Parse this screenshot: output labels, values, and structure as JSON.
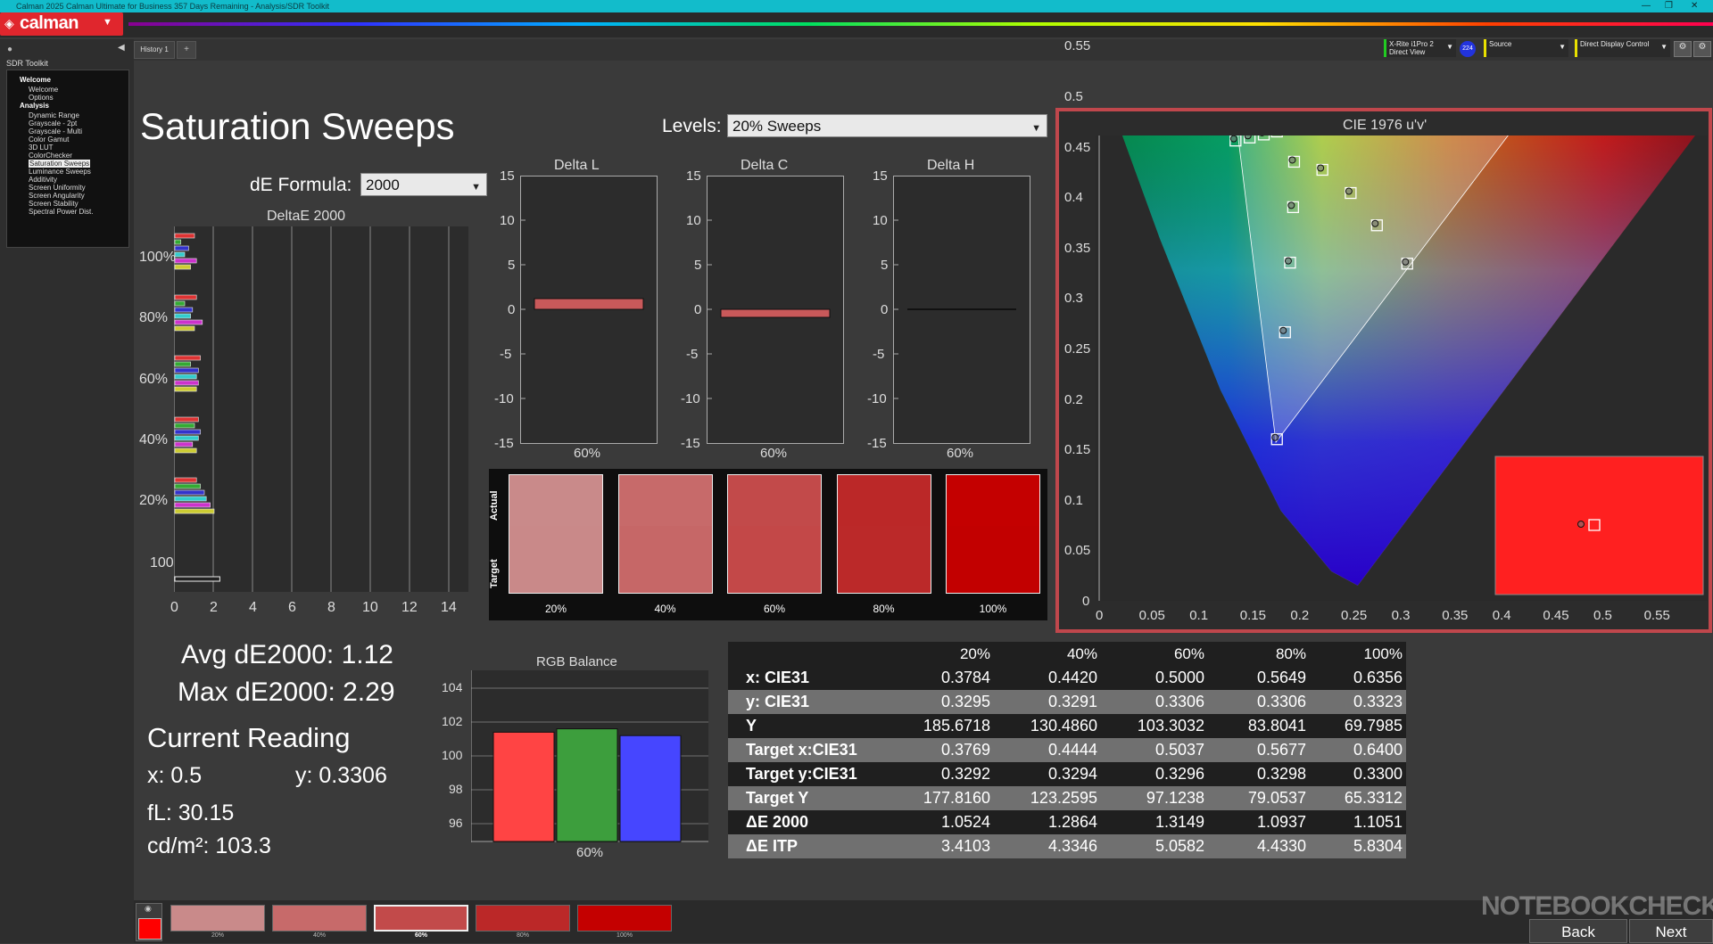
{
  "titlebar": {
    "text": "Calman 2025 Calman Ultimate for Business 357 Days Remaining - Analysis/SDR Toolkit"
  },
  "app": {
    "logo": "calman"
  },
  "sidebar": {
    "section": "SDR Toolkit",
    "items": [
      {
        "label": "Welcome",
        "bold": true
      },
      {
        "label": "Welcome"
      },
      {
        "label": "Options"
      },
      {
        "label": "Analysis",
        "bold": true
      },
      {
        "label": "Dynamic Range"
      },
      {
        "label": "Grayscale - 2pt"
      },
      {
        "label": "Grayscale - Multi"
      },
      {
        "label": "Color Gamut"
      },
      {
        "label": "3D LUT"
      },
      {
        "label": "ColorChecker"
      },
      {
        "label": "Saturation Sweeps",
        "selected": true
      },
      {
        "label": "Luminance Sweeps"
      },
      {
        "label": "Additivity"
      },
      {
        "label": "Screen Uniformity"
      },
      {
        "label": "Screen Angularity"
      },
      {
        "label": "Screen Stability"
      },
      {
        "label": "Spectral Power Dist."
      }
    ]
  },
  "tabs": {
    "history": "History 1"
  },
  "devices": {
    "meter_line1": "X-Rite i1Pro 2",
    "meter_line2": "Direct View",
    "meter_badge": "224",
    "source": "Source",
    "display": "Direct Display Control"
  },
  "page": {
    "title": "Saturation Sweeps"
  },
  "levels": {
    "label": "Levels:",
    "value": "20% Sweeps"
  },
  "de_formula": {
    "label": "dE Formula:",
    "value": "2000"
  },
  "deltae_chart": {
    "title": "DeltaE 2000",
    "yticks": [
      "100%",
      "80%",
      "60%",
      "40%",
      "20%",
      "100"
    ],
    "xticks": [
      "0",
      "2",
      "4",
      "6",
      "8",
      "10",
      "12",
      "14"
    ]
  },
  "delta_charts": [
    {
      "title": "Delta L",
      "value": 1.2,
      "xlabel": "60%"
    },
    {
      "title": "Delta C",
      "value": -0.9,
      "xlabel": "60%"
    },
    {
      "title": "Delta H",
      "value": 0.1,
      "xlabel": "60%"
    }
  ],
  "delta_yticks": [
    "15",
    "10",
    "5",
    "0",
    "-5",
    "-10",
    "-15"
  ],
  "swatches": {
    "actual_label": "Actual",
    "target_label": "Target",
    "items": [
      {
        "label": "20%",
        "actual": "#c98a8a",
        "target": "#c98989"
      },
      {
        "label": "40%",
        "actual": "#c76a6a",
        "target": "#c66767"
      },
      {
        "label": "60%",
        "actual": "#c24a4a",
        "target": "#c34848"
      },
      {
        "label": "80%",
        "actual": "#bb2828",
        "target": "#bb2929"
      },
      {
        "label": "100%",
        "actual": "#c40000",
        "target": "#c20000"
      }
    ]
  },
  "cie": {
    "title": "CIE 1976 u'v'",
    "xticks": [
      "0",
      "0.05",
      "0.1",
      "0.15",
      "0.2",
      "0.25",
      "0.3",
      "0.35",
      "0.4",
      "0.45",
      "0.5",
      "0.55"
    ],
    "yticks": [
      "0.55",
      "0.5",
      "0.45",
      "0.4",
      "0.35",
      "0.3",
      "0.25",
      "0.2",
      "0.15",
      "0.1",
      "0.05",
      "0"
    ]
  },
  "stats": {
    "avg": "Avg dE2000: 1.12",
    "max": "Max dE2000: 2.29",
    "current_heading": "Current Reading",
    "x": "x: 0.5",
    "y": "y: 0.3306",
    "fl": "fL: 30.15",
    "cdm2": "cd/m²: 103.3"
  },
  "rgb_balance": {
    "title": "RGB Balance",
    "yticks": [
      "104",
      "102",
      "100",
      "98",
      "96"
    ],
    "xlabel": "60%",
    "values": {
      "red": 101.4,
      "green": 101.6,
      "blue": 101.2
    }
  },
  "table": {
    "headers": [
      "",
      "20%",
      "40%",
      "60%",
      "80%",
      "100%"
    ],
    "rows": [
      [
        "x: CIE31",
        "0.3784",
        "0.4420",
        "0.5000",
        "0.5649",
        "0.6356"
      ],
      [
        "y: CIE31",
        "0.3295",
        "0.3291",
        "0.3306",
        "0.3306",
        "0.3323"
      ],
      [
        "Y",
        "185.6718",
        "130.4860",
        "103.3032",
        "83.8041",
        "69.7985"
      ],
      [
        "Target x:CIE31",
        "0.3769",
        "0.4444",
        "0.5037",
        "0.5677",
        "0.6400"
      ],
      [
        "Target y:CIE31",
        "0.3292",
        "0.3294",
        "0.3296",
        "0.3298",
        "0.3300"
      ],
      [
        "Target Y",
        "177.8160",
        "123.2595",
        "97.1238",
        "79.0537",
        "65.3312"
      ],
      [
        "ΔE 2000",
        "1.0524",
        "1.2864",
        "1.3149",
        "1.0937",
        "1.1051"
      ],
      [
        "ΔE ITP",
        "3.4103",
        "4.3346",
        "5.0582",
        "4.4330",
        "5.8304"
      ]
    ]
  },
  "bottom": {
    "thumbs": [
      {
        "label": "20%",
        "color": "#c98a8a"
      },
      {
        "label": "40%",
        "color": "#c76a6a"
      },
      {
        "label": "60%",
        "color": "#c24a4a"
      },
      {
        "label": "80%",
        "color": "#bb2828"
      },
      {
        "label": "100%",
        "color": "#c40000"
      }
    ],
    "back": "Back",
    "next": "Next",
    "watermark": "NOTEBOOKCHECK"
  }
}
